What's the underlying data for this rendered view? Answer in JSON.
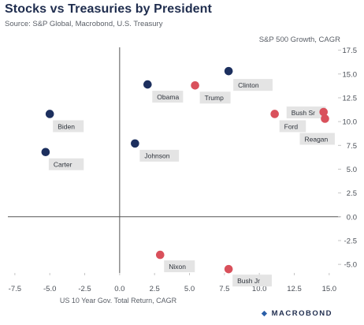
{
  "header": {
    "title": "Stocks vs Treasuries by President",
    "source": "Source: S&P Global, Macrobond, U.S. Treasury"
  },
  "footer": {
    "logo_text": "MACROBOND"
  },
  "colors": {
    "democrat": "#1c2f5e",
    "republican": "#d9505b",
    "label_bg": "#e4e4e4",
    "axis": "#555555",
    "grid": "#c6c6c6"
  },
  "chart_data": {
    "type": "scatter",
    "title": "Stocks vs Treasuries by President",
    "xlabel": "US 10 Year Gov. Total Return, CAGR",
    "ylabel": "S&P 500 Growth, CAGR",
    "xlim": [
      -8,
      15.8
    ],
    "ylim": [
      -5.9,
      17.8
    ],
    "x_ticks": [
      -7.5,
      -5.0,
      -2.5,
      0.0,
      2.5,
      5.0,
      7.5,
      10.0,
      12.5,
      15.0
    ],
    "y_ticks": [
      -5.0,
      -2.5,
      0.0,
      2.5,
      5.0,
      7.5,
      10.0,
      12.5,
      15.0,
      17.5
    ],
    "grid": false,
    "series": [
      {
        "party_color": "democrat",
        "points": [
          {
            "label": "Clinton",
            "x": 7.8,
            "y": 15.3
          },
          {
            "label": "Obama",
            "x": 2.0,
            "y": 13.9
          },
          {
            "label": "Biden",
            "x": -5.0,
            "y": 10.8
          },
          {
            "label": "Johnson",
            "x": 1.1,
            "y": 7.7
          },
          {
            "label": "Carter",
            "x": -5.3,
            "y": 6.8
          }
        ]
      },
      {
        "party_color": "republican",
        "points": [
          {
            "label": "Trump",
            "x": 5.4,
            "y": 13.8
          },
          {
            "label": "Bush Sr",
            "x": 14.6,
            "y": 11.0
          },
          {
            "label": "Reagan",
            "x": 14.7,
            "y": 10.3
          },
          {
            "label": "Ford",
            "x": 11.1,
            "y": 10.8
          },
          {
            "label": "Nixon",
            "x": 2.9,
            "y": -4.0
          },
          {
            "label": "Bush Jr",
            "x": 7.8,
            "y": -5.5
          }
        ]
      }
    ]
  }
}
